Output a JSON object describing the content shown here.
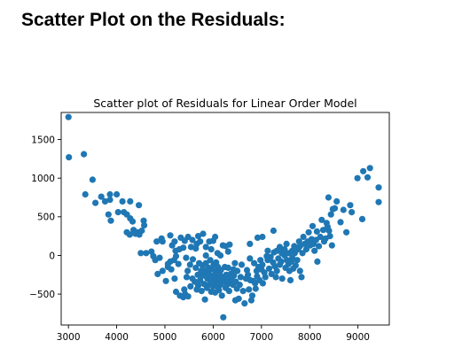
{
  "page": {
    "heading": "Scatter Plot on the Residuals:"
  },
  "chart_data": {
    "type": "scatter",
    "title": "Scatter plot of Residuals for Linear Order Model",
    "xlabel": "",
    "ylabel": "",
    "xlim": [
      2850,
      9650
    ],
    "ylim": [
      -900,
      1850
    ],
    "xticks": [
      3000,
      4000,
      5000,
      6000,
      7000,
      8000,
      9000
    ],
    "yticks": [
      -500,
      0,
      500,
      1000,
      1500
    ],
    "ytick_labels": [
      "−500",
      "0",
      "500",
      "1000",
      "1500"
    ],
    "grid": false,
    "marker_color": "#1f77b4",
    "series": [
      {
        "points": [
          [
            3000,
            1790
          ],
          [
            3010,
            1270
          ],
          [
            3320,
            1310
          ],
          [
            3500,
            980
          ],
          [
            3350,
            790
          ],
          [
            3560,
            680
          ],
          [
            3680,
            760
          ],
          [
            3760,
            700
          ],
          [
            3860,
            790
          ],
          [
            3860,
            720
          ],
          [
            4000,
            790
          ],
          [
            4120,
            700
          ],
          [
            4150,
            560
          ],
          [
            4280,
            700
          ],
          [
            4460,
            650
          ],
          [
            3830,
            530
          ],
          [
            3880,
            450
          ],
          [
            4030,
            560
          ],
          [
            4210,
            530
          ],
          [
            4280,
            480
          ],
          [
            4330,
            440
          ],
          [
            4560,
            450
          ],
          [
            4210,
            300
          ],
          [
            4270,
            270
          ],
          [
            4350,
            330
          ],
          [
            4390,
            280
          ],
          [
            4440,
            300
          ],
          [
            4470,
            270
          ],
          [
            4520,
            320
          ],
          [
            4570,
            390
          ],
          [
            4500,
            30
          ],
          [
            4610,
            30
          ],
          [
            4720,
            50
          ],
          [
            4830,
            180
          ],
          [
            4760,
            -10
          ],
          [
            4800,
            -60
          ],
          [
            4890,
            -30
          ],
          [
            4930,
            220
          ],
          [
            4950,
            180
          ],
          [
            5110,
            260
          ],
          [
            5150,
            130
          ],
          [
            5200,
            180
          ],
          [
            5220,
            60
          ],
          [
            5230,
            -10
          ],
          [
            5300,
            80
          ],
          [
            5330,
            230
          ],
          [
            5380,
            100
          ],
          [
            5410,
            190
          ],
          [
            5440,
            -30
          ],
          [
            5480,
            240
          ],
          [
            5540,
            110
          ],
          [
            5570,
            200
          ],
          [
            5640,
            90
          ],
          [
            5660,
            150
          ],
          [
            5690,
            250
          ],
          [
            5730,
            180
          ],
          [
            5790,
            280
          ],
          [
            5850,
            110
          ],
          [
            5850,
            0
          ],
          [
            5920,
            180
          ],
          [
            5960,
            80
          ],
          [
            6000,
            190
          ],
          [
            6040,
            240
          ],
          [
            6090,
            30
          ],
          [
            6150,
            0
          ],
          [
            6200,
            130
          ],
          [
            6260,
            120
          ],
          [
            6340,
            140
          ],
          [
            6310,
            50
          ],
          [
            4850,
            -240
          ],
          [
            4950,
            -200
          ],
          [
            5020,
            -330
          ],
          [
            5060,
            -150
          ],
          [
            5060,
            -110
          ],
          [
            5110,
            -80
          ],
          [
            5130,
            -180
          ],
          [
            5190,
            -60
          ],
          [
            5200,
            -300
          ],
          [
            5230,
            -470
          ],
          [
            5280,
            -110
          ],
          [
            5310,
            -520
          ],
          [
            5380,
            -540
          ],
          [
            5400,
            -440
          ],
          [
            5420,
            -500
          ],
          [
            5450,
            -280
          ],
          [
            5470,
            -200
          ],
          [
            5480,
            -530
          ],
          [
            5520,
            -120
          ],
          [
            5530,
            -400
          ],
          [
            5570,
            -300
          ],
          [
            5580,
            -50
          ],
          [
            5620,
            -340
          ],
          [
            5640,
            -160
          ],
          [
            5660,
            -440
          ],
          [
            5680,
            -250
          ],
          [
            5690,
            -390
          ],
          [
            5710,
            -100
          ],
          [
            5730,
            -320
          ],
          [
            5750,
            -200
          ],
          [
            5760,
            -460
          ],
          [
            5780,
            -130
          ],
          [
            5790,
            -260
          ],
          [
            5810,
            -370
          ],
          [
            5830,
            -570
          ],
          [
            5840,
            -200
          ],
          [
            5850,
            -100
          ],
          [
            5870,
            -420
          ],
          [
            5880,
            -300
          ],
          [
            5890,
            -220
          ],
          [
            5900,
            -160
          ],
          [
            5910,
            -380
          ],
          [
            5920,
            -250
          ],
          [
            5940,
            -60
          ],
          [
            5950,
            -330
          ],
          [
            5960,
            -470
          ],
          [
            5970,
            -180
          ],
          [
            5980,
            -300
          ],
          [
            6000,
            -400
          ],
          [
            6010,
            -120
          ],
          [
            6020,
            -260
          ],
          [
            6030,
            -350
          ],
          [
            6040,
            -480
          ],
          [
            6050,
            -200
          ],
          [
            6060,
            -90
          ],
          [
            6070,
            -310
          ],
          [
            6080,
            -400
          ],
          [
            6090,
            -260
          ],
          [
            6100,
            -150
          ],
          [
            6110,
            -350
          ],
          [
            6120,
            -450
          ],
          [
            6130,
            -230
          ],
          [
            6140,
            -300
          ],
          [
            6150,
            -380
          ],
          [
            6160,
            -190
          ],
          [
            6180,
            -520
          ],
          [
            6200,
            -280
          ],
          [
            6210,
            -800
          ],
          [
            6230,
            -340
          ],
          [
            6240,
            -150
          ],
          [
            6260,
            -420
          ],
          [
            6270,
            -250
          ],
          [
            6290,
            -380
          ],
          [
            6300,
            -300
          ],
          [
            6310,
            -160
          ],
          [
            6330,
            -460
          ],
          [
            6340,
            -350
          ],
          [
            6360,
            -240
          ],
          [
            6380,
            -320
          ],
          [
            6410,
            -380
          ],
          [
            6420,
            -180
          ],
          [
            6430,
            -260
          ],
          [
            6450,
            -100
          ],
          [
            6460,
            -580
          ],
          [
            6470,
            -340
          ],
          [
            6490,
            -430
          ],
          [
            6500,
            -200
          ],
          [
            6530,
            -560
          ],
          [
            6550,
            -380
          ],
          [
            6570,
            -280
          ],
          [
            6590,
            -120
          ],
          [
            6620,
            -460
          ],
          [
            6650,
            -620
          ],
          [
            6680,
            -300
          ],
          [
            6700,
            -190
          ],
          [
            6720,
            -250
          ],
          [
            6740,
            -440
          ],
          [
            6760,
            -40
          ],
          [
            6770,
            -320
          ],
          [
            6790,
            -580
          ],
          [
            6810,
            -520
          ],
          [
            6830,
            -330
          ],
          [
            6850,
            -100
          ],
          [
            6870,
            -360
          ],
          [
            6880,
            -430
          ],
          [
            6900,
            -200
          ],
          [
            6910,
            -270
          ],
          [
            6940,
            -150
          ],
          [
            6960,
            -320
          ],
          [
            6980,
            -60
          ],
          [
            7000,
            -180
          ],
          [
            7020,
            -120
          ],
          [
            7030,
            -360
          ],
          [
            7060,
            -220
          ],
          [
            7080,
            -280
          ],
          [
            7110,
            -10
          ],
          [
            7130,
            -60
          ],
          [
            7160,
            -170
          ],
          [
            7190,
            -20
          ],
          [
            7210,
            -240
          ],
          [
            7240,
            -90
          ],
          [
            7260,
            40
          ],
          [
            7280,
            -140
          ],
          [
            7300,
            -280
          ],
          [
            7320,
            -200
          ],
          [
            7350,
            -40
          ],
          [
            7380,
            -120
          ],
          [
            7410,
            -80
          ],
          [
            7430,
            -300
          ],
          [
            7450,
            60
          ],
          [
            7480,
            0
          ],
          [
            7500,
            -160
          ],
          [
            7530,
            -60
          ],
          [
            7560,
            -110
          ],
          [
            7580,
            -200
          ],
          [
            7600,
            -320
          ],
          [
            7620,
            -80
          ],
          [
            7640,
            -30
          ],
          [
            7660,
            -170
          ],
          [
            7690,
            30
          ],
          [
            7710,
            -130
          ],
          [
            7740,
            -60
          ],
          [
            7760,
            80
          ],
          [
            7800,
            -200
          ],
          [
            7830,
            -280
          ],
          [
            6760,
            150
          ],
          [
            6920,
            230
          ],
          [
            7020,
            240
          ],
          [
            7130,
            60
          ],
          [
            7250,
            320
          ],
          [
            7320,
            60
          ],
          [
            7380,
            110
          ],
          [
            7420,
            30
          ],
          [
            7480,
            80
          ],
          [
            7520,
            150
          ],
          [
            7570,
            30
          ],
          [
            7640,
            60
          ],
          [
            7680,
            120
          ],
          [
            7730,
            90
          ],
          [
            7780,
            180
          ],
          [
            7800,
            120
          ],
          [
            7850,
            30
          ],
          [
            7870,
            240
          ],
          [
            7900,
            150
          ],
          [
            7930,
            80
          ],
          [
            7960,
            180
          ],
          [
            7980,
            300
          ],
          [
            8010,
            130
          ],
          [
            8040,
            210
          ],
          [
            8060,
            380
          ],
          [
            8080,
            150
          ],
          [
            8100,
            60
          ],
          [
            8130,
            200
          ],
          [
            8150,
            310
          ],
          [
            8160,
            -80
          ],
          [
            8190,
            120
          ],
          [
            8220,
            240
          ],
          [
            8250,
            460
          ],
          [
            8280,
            330
          ],
          [
            8300,
            180
          ],
          [
            8330,
            220
          ],
          [
            8350,
            420
          ],
          [
            8370,
            370
          ],
          [
            8400,
            320
          ],
          [
            8420,
            250
          ],
          [
            8440,
            530
          ],
          [
            8460,
            130
          ],
          [
            8390,
            750
          ],
          [
            8480,
            600
          ],
          [
            8520,
            610
          ],
          [
            8560,
            700
          ],
          [
            8640,
            430
          ],
          [
            8700,
            590
          ],
          [
            8760,
            300
          ],
          [
            8840,
            650
          ],
          [
            8870,
            560
          ],
          [
            8990,
            1000
          ],
          [
            9090,
            470
          ],
          [
            9110,
            1090
          ],
          [
            9200,
            1010
          ],
          [
            9250,
            1130
          ],
          [
            9430,
            880
          ],
          [
            9430,
            690
          ]
        ]
      }
    ]
  }
}
